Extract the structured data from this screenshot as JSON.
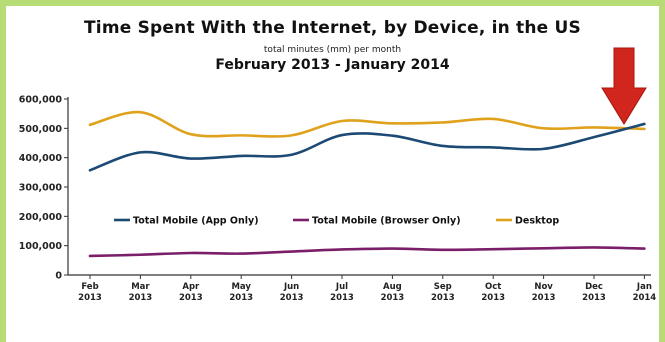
{
  "colors": {
    "page_border": "#b7dc76",
    "app_only": "#1d4a74",
    "browser_only": "#7a1e6a",
    "desktop": "#e0a21c",
    "arrow": "#d0261e"
  },
  "chart_data": {
    "type": "line",
    "title": "Time Spent With the Internet, by Device, in the US",
    "subtitle": "total minutes (mm) per month",
    "date_range": "February 2013 - January 2014",
    "categories": [
      [
        "Feb",
        "2013"
      ],
      [
        "Mar",
        "2013"
      ],
      [
        "Apr",
        "2013"
      ],
      [
        "May",
        "2013"
      ],
      [
        "Jun",
        "2013"
      ],
      [
        "Jul",
        "2013"
      ],
      [
        "Aug",
        "2013"
      ],
      [
        "Sep",
        "2013"
      ],
      [
        "Oct",
        "2013"
      ],
      [
        "Nov",
        "2013"
      ],
      [
        "Dec",
        "2013"
      ],
      [
        "Jan",
        "2014"
      ]
    ],
    "ylim": [
      0,
      600000
    ],
    "yticks": [
      "0",
      "100,000",
      "200,000",
      "300,000",
      "400,000",
      "500,000",
      "600,000"
    ],
    "ytick_values": [
      0,
      100000,
      200000,
      300000,
      400000,
      500000,
      600000
    ],
    "grid": false,
    "legend_position": "center",
    "annotation": "red-down-arrow at Jan 2014 crossover",
    "series": [
      {
        "name": "Total Mobile (App Only)",
        "color": "#1d4a74",
        "values": [
          357000,
          418000,
          397000,
          406000,
          410000,
          477000,
          475000,
          440000,
          435000,
          430000,
          470000,
          515000
        ]
      },
      {
        "name": "Total Mobile (Browser Only)",
        "color": "#7a1e6a",
        "values": [
          65000,
          69000,
          75000,
          73000,
          80000,
          87000,
          90000,
          86000,
          88000,
          91000,
          94000,
          90000
        ]
      },
      {
        "name": "Desktop",
        "color": "#e0a21c",
        "values": [
          512000,
          555000,
          480000,
          476000,
          476000,
          525000,
          517000,
          520000,
          532000,
          500000,
          503000,
          498000
        ]
      }
    ]
  }
}
